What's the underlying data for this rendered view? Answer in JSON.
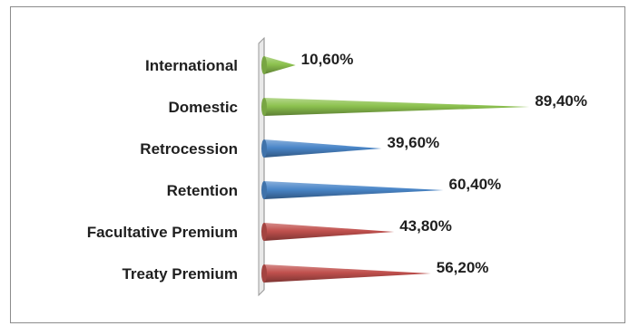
{
  "chart_data": {
    "type": "bar",
    "orientation": "horizontal",
    "categories": [
      "International",
      "Domestic",
      "Retrocession",
      "Retention",
      "Facultative Premium",
      "Treaty Premium"
    ],
    "values": [
      10.6,
      89.4,
      39.6,
      60.4,
      43.8,
      56.2
    ],
    "value_labels": [
      "10,60%",
      "89,40%",
      "39,60%",
      "60,40%",
      "43,80%",
      "56,20%"
    ],
    "xlim": [
      0,
      100
    ],
    "unit": "%",
    "grid": false,
    "legend": "none",
    "bar_shape": "cone",
    "colors": [
      "#8dc24f",
      "#8dc24f",
      "#4a86c8",
      "#4a86c8",
      "#c0504d",
      "#c0504d"
    ]
  }
}
